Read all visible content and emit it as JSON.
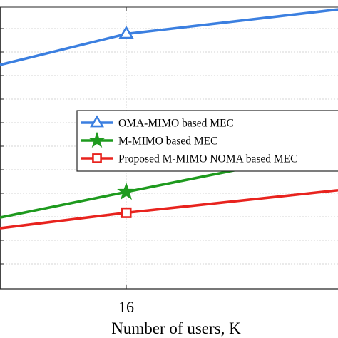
{
  "chart_data": {
    "type": "line",
    "xlabel": "Number of users, K",
    "ylabel": "",
    "x_ticks": [
      16
    ],
    "xlim": [
      12.9,
      21.2
    ],
    "ylim": [
      0,
      100
    ],
    "grid": true,
    "legend_position": "center-right",
    "series": [
      {
        "name": "OMA-MIMO based MEC",
        "color": "#3b7fe0",
        "marker": "triangle",
        "x": [
          12.9,
          16,
          21.2
        ],
        "y": [
          79.5,
          90.5,
          99.2
        ],
        "marked_x": [
          16
        ]
      },
      {
        "name": "M-MIMO based MEC",
        "color": "#1e9a1e",
        "marker": "star",
        "x": [
          12.9,
          16,
          21.2
        ],
        "y": [
          25.3,
          34.4,
          49.4
        ],
        "marked_x": [
          16
        ]
      },
      {
        "name": "Proposed M-MIMO NOMA based MEC",
        "color": "#e8231e",
        "marker": "square",
        "x": [
          12.9,
          16,
          21.2
        ],
        "y": [
          21.5,
          27.0,
          35.0
        ],
        "marked_x": [
          16
        ]
      }
    ]
  }
}
